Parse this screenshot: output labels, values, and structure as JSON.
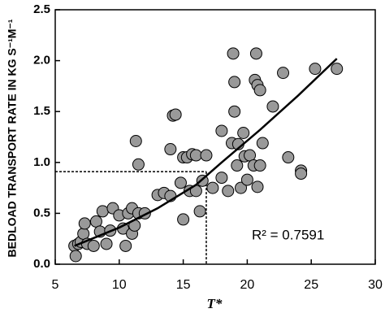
{
  "chart_data": {
    "type": "scatter",
    "x_label": "T*",
    "y_label": "BEDLOAD TRANSPORT RATE IN KG S⁻¹M⁻¹",
    "annotation": "R² = 0.7591",
    "xlim": [
      5,
      30
    ],
    "xticks": [
      5,
      10,
      15,
      20,
      25,
      30
    ],
    "ylim": [
      0,
      2.5
    ],
    "yticks": [
      {
        "value": 0,
        "label": "0.0"
      },
      {
        "value": 0.5,
        "label": "0.5"
      },
      {
        "value": 1,
        "label": "1.0"
      },
      {
        "value": 1.5,
        "label": "1.5"
      },
      {
        "value": 2,
        "label": "2.0"
      },
      {
        "value": 2.5,
        "label": "2.5"
      }
    ],
    "color": "#999999",
    "x": [
      6.5,
      6.6,
      6.8,
      7.0,
      7.2,
      7.3,
      7.5,
      8,
      8.2,
      8.5,
      8.7,
      9,
      9.3,
      9.5,
      10,
      10.3,
      10.5,
      10.7,
      11,
      11,
      11.2,
      11.3,
      11.5,
      11.5,
      12,
      13,
      13.5,
      14,
      14,
      14.2,
      14.4,
      14.8,
      15,
      15,
      15.3,
      15.5,
      15.7,
      16,
      16,
      16.3,
      16.5,
      16.8,
      17.3,
      18,
      18,
      18.5,
      18.8,
      18.9,
      19,
      19,
      19.2,
      19.3,
      19.5,
      19.7,
      19.8,
      20,
      20.2,
      20.5,
      20.6,
      20.7,
      20.8,
      20.8,
      21,
      21,
      21.2,
      22,
      22.8,
      23.2,
      24.2,
      24.2,
      25.3,
      27
    ],
    "values": [
      0.18,
      0.08,
      0.2,
      0.22,
      0.3,
      0.4,
      0.2,
      0.18,
      0.42,
      0.32,
      0.52,
      0.2,
      0.33,
      0.55,
      0.48,
      0.35,
      0.18,
      0.5,
      0.55,
      0.3,
      0.38,
      1.21,
      0.98,
      0.5,
      0.5,
      0.68,
      0.7,
      1.13,
      0.67,
      1.46,
      1.47,
      0.8,
      0.44,
      1.05,
      1.05,
      0.72,
      1.08,
      1.07,
      0.72,
      0.52,
      0.82,
      1.07,
      0.75,
      1.31,
      0.85,
      0.72,
      1.19,
      2.07,
      1.5,
      1.79,
      0.97,
      1.18,
      0.75,
      1.29,
      1.06,
      0.83,
      1.07,
      0.97,
      1.81,
      2.07,
      1.76,
      0.76,
      0.97,
      1.71,
      1.19,
      1.55,
      1.88,
      1.05,
      0.92,
      0.89,
      1.92,
      1.92
    ],
    "trend_line": {
      "x": [
        6.5,
        10,
        13,
        16,
        18,
        21,
        24,
        27
      ],
      "values": [
        0.18,
        0.36,
        0.55,
        0.78,
        1.0,
        1.32,
        1.66,
        2.02
      ]
    },
    "reference": {
      "x": 16.8,
      "y": 0.91
    }
  }
}
